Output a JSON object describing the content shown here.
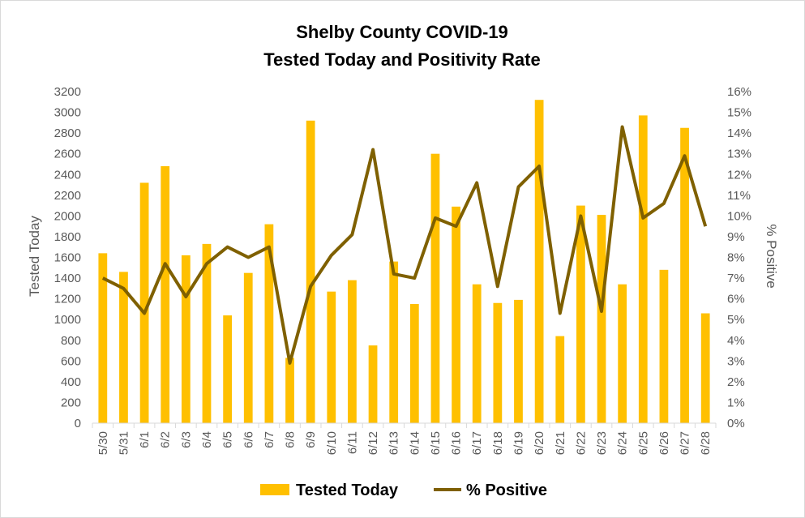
{
  "chart_data": {
    "type": "bar",
    "title": [
      "Shelby County COVID-19",
      "Tested Today and Positivity Rate"
    ],
    "categories": [
      "5/30",
      "5/31",
      "6/1",
      "6/2",
      "6/3",
      "6/4",
      "6/5",
      "6/6",
      "6/7",
      "6/8",
      "6/9",
      "6/10",
      "6/11",
      "6/12",
      "6/13",
      "6/14",
      "6/15",
      "6/16",
      "6/17",
      "6/18",
      "6/19",
      "6/20",
      "6/21",
      "6/22",
      "6/23",
      "6/24",
      "6/25",
      "6/26",
      "6/27",
      "6/28"
    ],
    "series": [
      {
        "name": "Tested Today",
        "type": "bar",
        "axis": "left",
        "color": "#FFC000",
        "values": [
          1640,
          1460,
          2320,
          2480,
          1620,
          1730,
          1040,
          1450,
          1920,
          630,
          2920,
          1270,
          1380,
          750,
          1560,
          1150,
          2600,
          2090,
          1340,
          1160,
          1190,
          3120,
          840,
          2100,
          2010,
          1340,
          2970,
          1480,
          2850,
          1060
        ]
      },
      {
        "name": "% Positive",
        "type": "line",
        "axis": "right",
        "color": "#7F6000",
        "values": [
          7.0,
          6.5,
          5.3,
          7.7,
          6.1,
          7.7,
          8.5,
          8.0,
          8.5,
          2.9,
          6.6,
          8.1,
          9.1,
          13.2,
          7.2,
          7.0,
          9.9,
          9.5,
          11.6,
          6.6,
          11.4,
          12.4,
          5.3,
          10.0,
          5.4,
          14.3,
          9.9,
          10.6,
          12.9,
          9.5
        ]
      }
    ],
    "ylabel": "Tested Today",
    "y2label": "% Positive",
    "ylim": [
      0,
      3200
    ],
    "yticks": [
      "0",
      "200",
      "400",
      "600",
      "800",
      "1000",
      "1200",
      "1400",
      "1600",
      "1800",
      "2000",
      "2200",
      "2400",
      "2600",
      "2800",
      "3000",
      "3200"
    ],
    "y2lim": [
      0,
      16
    ],
    "y2ticks": [
      "0%",
      "1%",
      "2%",
      "3%",
      "4%",
      "5%",
      "6%",
      "7%",
      "8%",
      "9%",
      "10%",
      "11%",
      "12%",
      "13%",
      "14%",
      "15%",
      "16%"
    ],
    "grid": false,
    "legend": "bottom"
  }
}
